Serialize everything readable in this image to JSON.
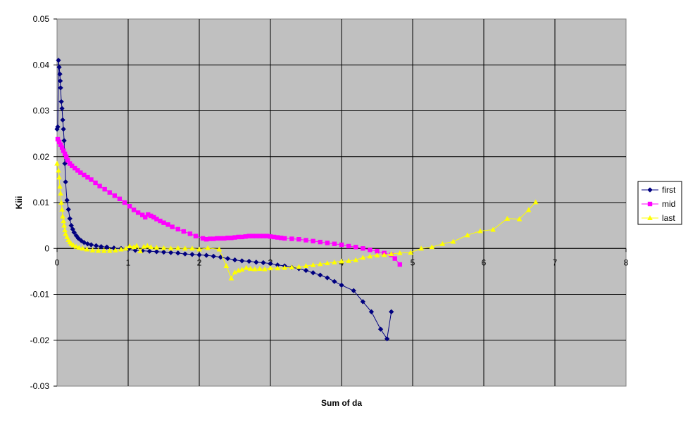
{
  "chart_data": {
    "type": "scatter",
    "title": "",
    "xlabel": "Sum of da",
    "ylabel": "Kiii",
    "xlim": [
      0,
      8
    ],
    "ylim": [
      -0.03,
      0.05
    ],
    "x_ticks": [
      "0",
      "1",
      "2",
      "3",
      "4",
      "5",
      "6",
      "7",
      "8"
    ],
    "y_ticks": [
      "0.05",
      "0.04",
      "0.03",
      "0.02",
      "0.01",
      "0",
      "-0.01",
      "-0.02",
      "-0.03"
    ],
    "grid": true,
    "plot_background": "#c0c0c0",
    "legend_position": "right",
    "series": [
      {
        "name": "first",
        "color": "#000080",
        "marker": "diamond",
        "points": [
          [
            0.0,
            0.026
          ],
          [
            0.01,
            0.0265
          ],
          [
            0.02,
            0.041
          ],
          [
            0.03,
            0.0395
          ],
          [
            0.04,
            0.038
          ],
          [
            0.045,
            0.0365
          ],
          [
            0.05,
            0.035
          ],
          [
            0.06,
            0.032
          ],
          [
            0.07,
            0.0305
          ],
          [
            0.08,
            0.028
          ],
          [
            0.09,
            0.026
          ],
          [
            0.1,
            0.0235
          ],
          [
            0.11,
            0.0185
          ],
          [
            0.12,
            0.0145
          ],
          [
            0.14,
            0.0105
          ],
          [
            0.16,
            0.0085
          ],
          [
            0.18,
            0.0065
          ],
          [
            0.2,
            0.005
          ],
          [
            0.22,
            0.0042
          ],
          [
            0.24,
            0.0035
          ],
          [
            0.27,
            0.0028
          ],
          [
            0.3,
            0.0022
          ],
          [
            0.34,
            0.0017
          ],
          [
            0.38,
            0.0013
          ],
          [
            0.43,
            0.001
          ],
          [
            0.48,
            0.0008
          ],
          [
            0.55,
            0.0006
          ],
          [
            0.62,
            0.0004
          ],
          [
            0.7,
            0.0003
          ],
          [
            0.8,
            0.0001
          ],
          [
            0.9,
            0.0
          ],
          [
            1.0,
            -0.0002
          ],
          [
            1.1,
            -0.0004
          ],
          [
            1.2,
            -0.0005
          ],
          [
            1.3,
            -0.0006
          ],
          [
            1.4,
            -0.0007
          ],
          [
            1.5,
            -0.0008
          ],
          [
            1.6,
            -0.0009
          ],
          [
            1.7,
            -0.001
          ],
          [
            1.8,
            -0.0012
          ],
          [
            1.9,
            -0.0013
          ],
          [
            2.0,
            -0.0014
          ],
          [
            2.1,
            -0.0015
          ],
          [
            2.2,
            -0.0017
          ],
          [
            2.3,
            -0.0019
          ],
          [
            2.4,
            -0.0022
          ],
          [
            2.5,
            -0.0025
          ],
          [
            2.6,
            -0.0027
          ],
          [
            2.7,
            -0.0028
          ],
          [
            2.8,
            -0.003
          ],
          [
            2.9,
            -0.0031
          ],
          [
            3.0,
            -0.0033
          ],
          [
            3.1,
            -0.0036
          ],
          [
            3.2,
            -0.0038
          ],
          [
            3.3,
            -0.0041
          ],
          [
            3.4,
            -0.0044
          ],
          [
            3.5,
            -0.0048
          ],
          [
            3.6,
            -0.0053
          ],
          [
            3.7,
            -0.0058
          ],
          [
            3.8,
            -0.0064
          ],
          [
            3.9,
            -0.0072
          ],
          [
            4.0,
            -0.008
          ],
          [
            4.17,
            -0.0092
          ],
          [
            4.3,
            -0.0116
          ],
          [
            4.42,
            -0.0138
          ],
          [
            4.55,
            -0.0176
          ],
          [
            4.64,
            -0.0197
          ],
          [
            4.7,
            -0.0138
          ]
        ]
      },
      {
        "name": "mid",
        "color": "#ff00ff",
        "marker": "square",
        "points": [
          [
            0.01,
            0.0238
          ],
          [
            0.03,
            0.0232
          ],
          [
            0.05,
            0.0226
          ],
          [
            0.07,
            0.022
          ],
          [
            0.09,
            0.0213
          ],
          [
            0.11,
            0.0206
          ],
          [
            0.13,
            0.02
          ],
          [
            0.15,
            0.0192
          ],
          [
            0.18,
            0.0185
          ],
          [
            0.21,
            0.018
          ],
          [
            0.25,
            0.0175
          ],
          [
            0.29,
            0.017
          ],
          [
            0.33,
            0.0165
          ],
          [
            0.38,
            0.016
          ],
          [
            0.43,
            0.0155
          ],
          [
            0.48,
            0.015
          ],
          [
            0.54,
            0.0143
          ],
          [
            0.6,
            0.0136
          ],
          [
            0.67,
            0.0129
          ],
          [
            0.74,
            0.0122
          ],
          [
            0.81,
            0.0115
          ],
          [
            0.88,
            0.0108
          ],
          [
            0.95,
            0.01
          ],
          [
            1.02,
            0.0092
          ],
          [
            1.08,
            0.0084
          ],
          [
            1.14,
            0.0078
          ],
          [
            1.2,
            0.0073
          ],
          [
            1.24,
            0.0068
          ],
          [
            1.28,
            0.0074
          ],
          [
            1.32,
            0.0071
          ],
          [
            1.36,
            0.0068
          ],
          [
            1.4,
            0.0064
          ],
          [
            1.45,
            0.006
          ],
          [
            1.5,
            0.0056
          ],
          [
            1.56,
            0.0052
          ],
          [
            1.62,
            0.0047
          ],
          [
            1.7,
            0.0042
          ],
          [
            1.78,
            0.0037
          ],
          [
            1.87,
            0.0032
          ],
          [
            1.95,
            0.0027
          ],
          [
            2.05,
            0.0022
          ],
          [
            2.1,
            0.002
          ],
          [
            2.15,
            0.0021
          ],
          [
            2.2,
            0.0021
          ],
          [
            2.25,
            0.0022
          ],
          [
            2.3,
            0.0022
          ],
          [
            2.35,
            0.0022
          ],
          [
            2.4,
            0.0023
          ],
          [
            2.45,
            0.0023
          ],
          [
            2.5,
            0.0024
          ],
          [
            2.55,
            0.0025
          ],
          [
            2.6,
            0.0025
          ],
          [
            2.65,
            0.0026
          ],
          [
            2.7,
            0.0027
          ],
          [
            2.75,
            0.0027
          ],
          [
            2.8,
            0.0027
          ],
          [
            2.85,
            0.0027
          ],
          [
            2.9,
            0.0027
          ],
          [
            2.95,
            0.0027
          ],
          [
            3.0,
            0.0026
          ],
          [
            3.05,
            0.0025
          ],
          [
            3.1,
            0.0024
          ],
          [
            3.15,
            0.0023
          ],
          [
            3.2,
            0.0022
          ],
          [
            3.3,
            0.0021
          ],
          [
            3.4,
            0.002
          ],
          [
            3.5,
            0.0018
          ],
          [
            3.6,
            0.0016
          ],
          [
            3.7,
            0.0014
          ],
          [
            3.8,
            0.0012
          ],
          [
            3.9,
            0.001
          ],
          [
            4.0,
            0.0008
          ],
          [
            4.1,
            0.0005
          ],
          [
            4.2,
            0.0003
          ],
          [
            4.3,
            0.0
          ],
          [
            4.4,
            -0.0003
          ],
          [
            4.5,
            -0.0006
          ],
          [
            4.6,
            -0.001
          ],
          [
            4.7,
            -0.0014
          ],
          [
            4.75,
            -0.0022
          ],
          [
            4.82,
            -0.0035
          ]
        ]
      },
      {
        "name": "last",
        "color": "#ffff00",
        "marker": "triangle",
        "points": [
          [
            0.0,
            0.0185
          ],
          [
            0.02,
            0.017
          ],
          [
            0.03,
            0.0155
          ],
          [
            0.04,
            0.0135
          ],
          [
            0.05,
            0.012
          ],
          [
            0.06,
            0.01
          ],
          [
            0.07,
            0.0085
          ],
          [
            0.08,
            0.007
          ],
          [
            0.09,
            0.006
          ],
          [
            0.1,
            0.005
          ],
          [
            0.11,
            0.004
          ],
          [
            0.12,
            0.0032
          ],
          [
            0.14,
            0.0025
          ],
          [
            0.16,
            0.0019
          ],
          [
            0.18,
            0.0014
          ],
          [
            0.2,
            0.001
          ],
          [
            0.23,
            0.0007
          ],
          [
            0.27,
            0.0004
          ],
          [
            0.31,
            0.0002
          ],
          [
            0.36,
            0.0
          ],
          [
            0.42,
            -0.0002
          ],
          [
            0.5,
            -0.0004
          ],
          [
            0.58,
            -0.0005
          ],
          [
            0.66,
            -0.0005
          ],
          [
            0.74,
            -0.0005
          ],
          [
            0.82,
            -0.0004
          ],
          [
            0.9,
            -0.0002
          ],
          [
            0.97,
            0.0
          ],
          [
            1.02,
            0.0005
          ],
          [
            1.08,
            0.0003
          ],
          [
            1.12,
            0.0006
          ],
          [
            1.17,
            -0.0006
          ],
          [
            1.22,
            0.0004
          ],
          [
            1.27,
            0.0006
          ],
          [
            1.32,
            0.0003
          ],
          [
            1.4,
            0.0002
          ],
          [
            1.5,
            0.0001
          ],
          [
            1.6,
            0.0
          ],
          [
            1.7,
            0.0001
          ],
          [
            1.8,
            0.0
          ],
          [
            1.9,
            0.0
          ],
          [
            2.0,
            -0.0002
          ],
          [
            2.12,
            0.0001
          ],
          [
            2.28,
            -0.0002
          ],
          [
            2.38,
            -0.0038
          ],
          [
            2.45,
            -0.0065
          ],
          [
            2.5,
            -0.0052
          ],
          [
            2.55,
            -0.0048
          ],
          [
            2.6,
            -0.0046
          ],
          [
            2.66,
            -0.0042
          ],
          [
            2.72,
            -0.0044
          ],
          [
            2.78,
            -0.0045
          ],
          [
            2.85,
            -0.0044
          ],
          [
            2.92,
            -0.0045
          ],
          [
            3.0,
            -0.0043
          ],
          [
            3.1,
            -0.0043
          ],
          [
            3.2,
            -0.0042
          ],
          [
            3.3,
            -0.0041
          ],
          [
            3.4,
            -0.004
          ],
          [
            3.5,
            -0.0038
          ],
          [
            3.6,
            -0.0036
          ],
          [
            3.7,
            -0.0034
          ],
          [
            3.8,
            -0.0032
          ],
          [
            3.9,
            -0.003
          ],
          [
            4.0,
            -0.0028
          ],
          [
            4.1,
            -0.0027
          ],
          [
            4.2,
            -0.0025
          ],
          [
            4.3,
            -0.002
          ],
          [
            4.4,
            -0.0017
          ],
          [
            4.5,
            -0.0015
          ],
          [
            4.6,
            -0.0014
          ],
          [
            4.7,
            -0.0012
          ],
          [
            4.82,
            -0.001
          ],
          [
            4.97,
            -0.0009
          ],
          [
            5.12,
            0.0
          ],
          [
            5.27,
            0.0003
          ],
          [
            5.42,
            0.001
          ],
          [
            5.57,
            0.0015
          ],
          [
            5.77,
            0.0029
          ],
          [
            5.95,
            0.0038
          ],
          [
            6.13,
            0.0041
          ],
          [
            6.33,
            0.0065
          ],
          [
            6.5,
            0.0064
          ],
          [
            6.63,
            0.0084
          ],
          [
            6.73,
            0.0101
          ]
        ]
      }
    ]
  }
}
